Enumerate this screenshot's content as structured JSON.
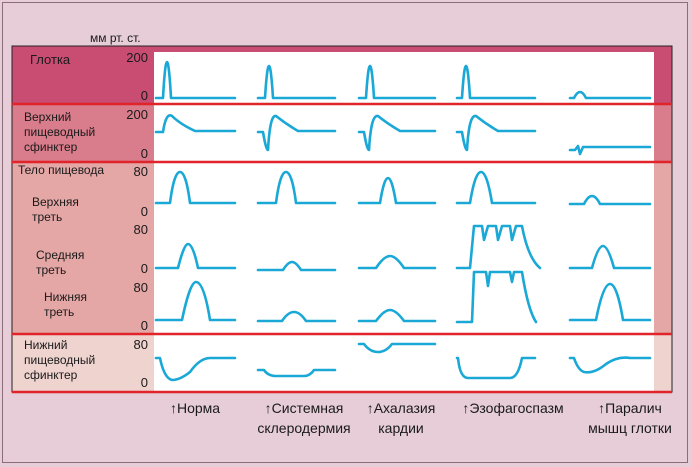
{
  "unit_label": "мм рт. ст.",
  "sections": {
    "pharynx": "Глотка",
    "upper_sphincter": [
      "Верхний",
      "пищеводный",
      "сфинктер"
    ],
    "body": "Тело пищевода",
    "upper_third": [
      "Верхняя",
      "треть"
    ],
    "middle_third": [
      "Средняя",
      "треть"
    ],
    "lower_third": [
      "Нижняя",
      "треть"
    ],
    "lower_sphincter": [
      "Нижний",
      "пищеводный",
      "сфинктер"
    ]
  },
  "scale": {
    "p200a": "200",
    "p0a": "0",
    "p200b": "200",
    "p0b": "0",
    "p80a": "80",
    "p0c": "0",
    "p80b": "80",
    "p0d": "0",
    "p80c": "80",
    "p0e": "0",
    "p80d": "80",
    "p0f": "0"
  },
  "columns": [
    {
      "line1": "↑Норма",
      "line2": ""
    },
    {
      "line1": "↑Системная",
      "line2": "склеродермия"
    },
    {
      "line1": "↑Ахалазия",
      "line2": "кардии"
    },
    {
      "line1": "↑Эзофагоспазм",
      "line2": ""
    },
    {
      "line1": "↑Паралич",
      "line2": "мышц глотки"
    }
  ],
  "colors": {
    "background": "#e6cdd7",
    "trace": "#1aa8d6",
    "divider": "#e0242a",
    "pharynx_band": "#c94d73",
    "sphincter_band": "#d97c8c",
    "body_band": "#e4a7a6",
    "les_band": "#efd3cf"
  }
}
